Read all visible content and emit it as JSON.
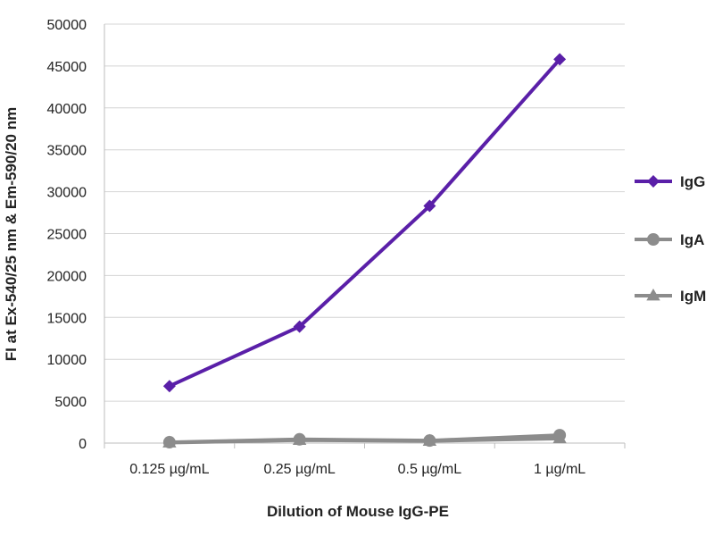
{
  "chart_data": {
    "type": "line",
    "title": "",
    "xlabel": "Dilution of Mouse IgG-PE",
    "ylabel": "FI at Ex-540/25 nm & Em-590/20 nm",
    "categories": [
      "0.125 µg/mL",
      "0.25 µg/mL",
      "0.5 µg/mL",
      "1 µg/mL"
    ],
    "ylim": [
      0,
      50000
    ],
    "yticks": [
      0,
      5000,
      10000,
      15000,
      20000,
      25000,
      30000,
      35000,
      40000,
      45000,
      50000
    ],
    "grid": true,
    "legend_position": "right",
    "series": [
      {
        "name": "IgG",
        "values": [
          6800,
          13900,
          28300,
          45800
        ],
        "color": "#5a1fa8",
        "marker": "diamond"
      },
      {
        "name": "IgA",
        "values": [
          100,
          450,
          300,
          950
        ],
        "color": "#8c8c8c",
        "marker": "circle"
      },
      {
        "name": "IgM",
        "values": [
          50,
          350,
          250,
          550
        ],
        "color": "#8c8c8c",
        "marker": "triangle"
      }
    ]
  }
}
